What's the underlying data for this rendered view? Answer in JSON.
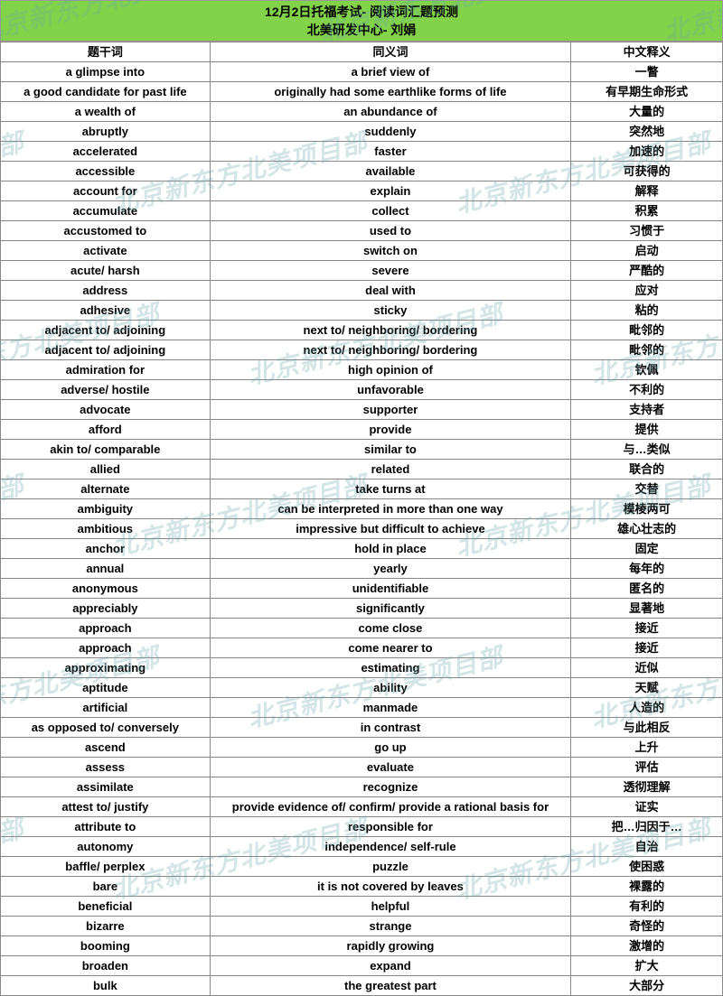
{
  "header": {
    "title_line1": "12月2日托福考试- 阅读词汇题预测",
    "title_line2": "北美研发中心- 刘娟",
    "bg_color": "#83d34a"
  },
  "watermark": {
    "text": "北京新东方北美项目部",
    "color_rgba": "rgba(100,160,170,0.28)",
    "rotate_deg": -14,
    "fontsize": 28
  },
  "table": {
    "columns": [
      "题干词",
      "同义词",
      "中文释义"
    ],
    "col_widths_pct": [
      29,
      50,
      21
    ],
    "rows": [
      [
        "a glimpse into",
        "a brief view of",
        "一瞥"
      ],
      [
        "a good candidate for past life",
        "originally had some earthlike forms of life",
        "有早期生命形式"
      ],
      [
        "a wealth of",
        "an abundance of",
        "大量的"
      ],
      [
        "abruptly",
        "suddenly",
        "突然地"
      ],
      [
        "accelerated",
        "faster",
        "加速的"
      ],
      [
        "accessible",
        "available",
        "可获得的"
      ],
      [
        "account for",
        "explain",
        "解释"
      ],
      [
        "accumulate",
        "collect",
        "积累"
      ],
      [
        "accustomed to",
        "used to",
        "习惯于"
      ],
      [
        "activate",
        "switch on",
        "启动"
      ],
      [
        "acute/ harsh",
        "severe",
        "严酷的"
      ],
      [
        "address",
        "deal with",
        "应对"
      ],
      [
        "adhesive",
        "sticky",
        "粘的"
      ],
      [
        "adjacent to/ adjoining",
        "next to/ neighboring/ bordering",
        "毗邻的"
      ],
      [
        "adjacent to/ adjoining",
        "next to/ neighboring/ bordering",
        "毗邻的"
      ],
      [
        "admiration for",
        "high opinion of",
        "钦佩"
      ],
      [
        "adverse/ hostile",
        "unfavorable",
        "不利的"
      ],
      [
        "advocate",
        "supporter",
        "支持者"
      ],
      [
        "afford",
        "provide",
        "提供"
      ],
      [
        "akin to/ comparable",
        "similar to",
        "与…类似"
      ],
      [
        "allied",
        "related",
        "联合的"
      ],
      [
        "alternate",
        "take turns at",
        "交替"
      ],
      [
        "ambiguity",
        "can be interpreted in more than one way",
        "模棱两可"
      ],
      [
        "ambitious",
        "impressive but difficult to achieve",
        "雄心壮志的"
      ],
      [
        "anchor",
        "hold in place",
        "固定"
      ],
      [
        "annual",
        "yearly",
        "每年的"
      ],
      [
        "anonymous",
        "unidentifiable",
        "匿名的"
      ],
      [
        "appreciably",
        "significantly",
        "显著地"
      ],
      [
        "approach",
        "come close",
        "接近"
      ],
      [
        "approach",
        "come nearer to",
        "接近"
      ],
      [
        "approximating",
        "estimating",
        "近似"
      ],
      [
        "aptitude",
        "ability",
        "天赋"
      ],
      [
        "artificial",
        "manmade",
        "人造的"
      ],
      [
        "as opposed to/ conversely",
        "in contrast",
        "与此相反"
      ],
      [
        "ascend",
        "go up",
        "上升"
      ],
      [
        "assess",
        "evaluate",
        "评估"
      ],
      [
        "assimilate",
        "recognize",
        "透彻理解"
      ],
      [
        "attest to/ justify",
        "provide evidence of/ confirm/ provide a rational basis for",
        "证实"
      ],
      [
        "attribute to",
        "responsible for",
        "把…归因于…"
      ],
      [
        "autonomy",
        "independence/ self-rule",
        "自治"
      ],
      [
        "baffle/ perplex",
        "puzzle",
        "使困惑"
      ],
      [
        "bare",
        "it is not covered by leaves",
        "裸露的"
      ],
      [
        "beneficial",
        "helpful",
        "有利的"
      ],
      [
        "bizarre",
        "strange",
        "奇怪的"
      ],
      [
        "booming",
        "rapidly growing",
        "激增的"
      ],
      [
        "broaden",
        "expand",
        "扩大"
      ],
      [
        "bulk",
        "the greatest part",
        "大部分"
      ]
    ]
  },
  "styling": {
    "border_color": "#888888",
    "cell_fontsize": 13,
    "cell_lineheight": 17,
    "font_weight": "bold",
    "background_color": "#ffffff"
  }
}
